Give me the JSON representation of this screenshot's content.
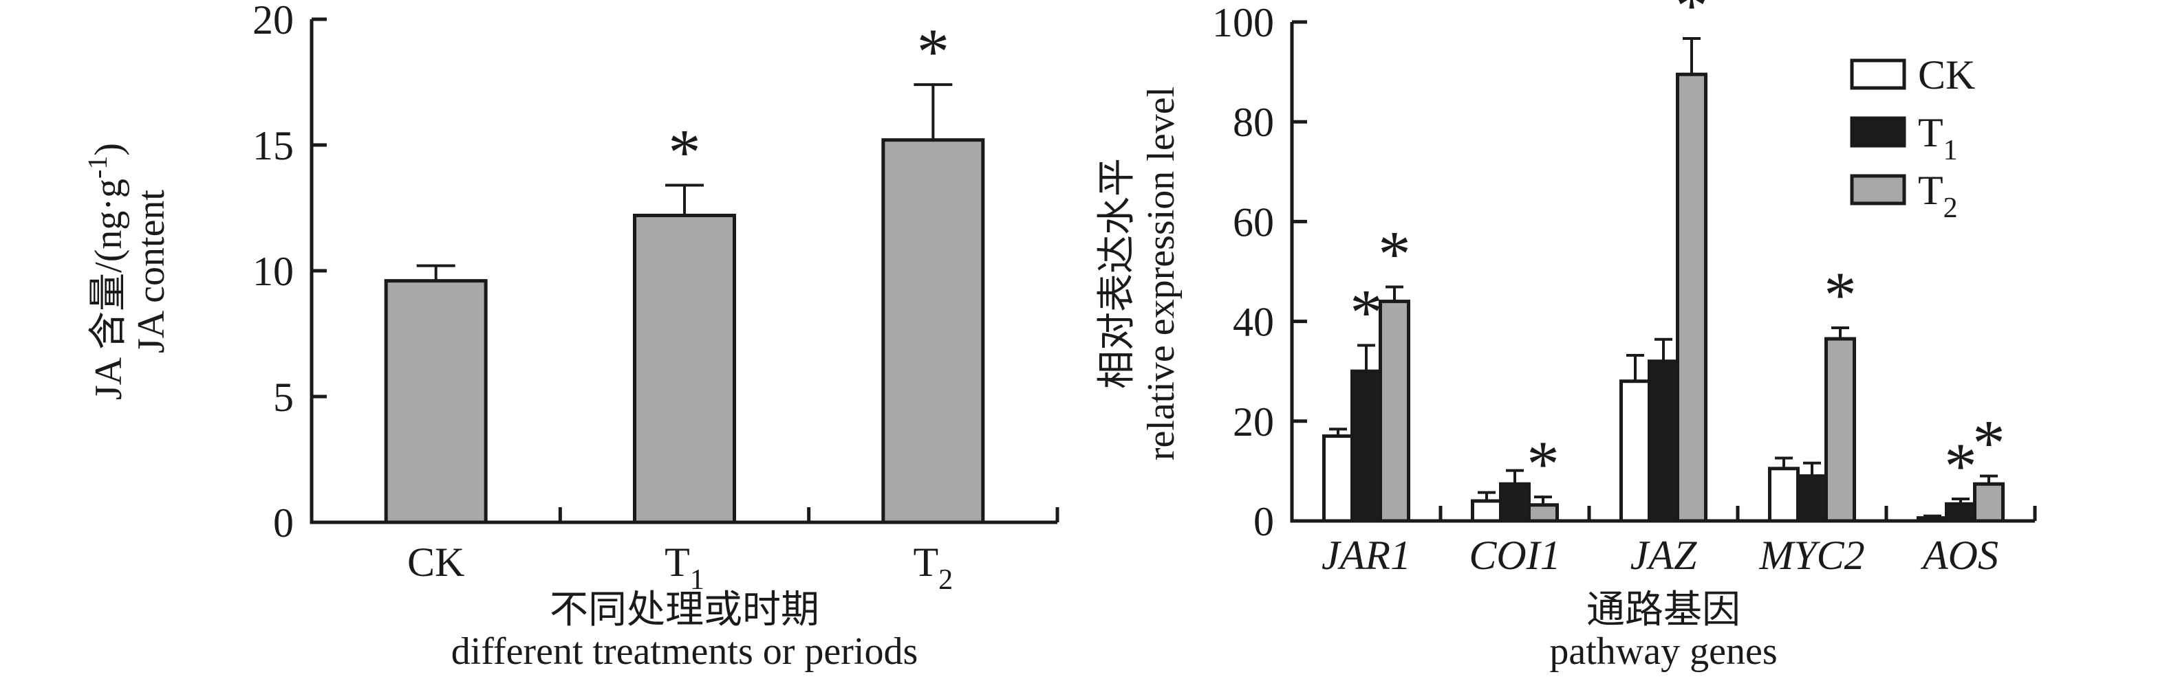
{
  "figure": {
    "background": "#ffffff",
    "significance_marker": "*",
    "colors": {
      "ink": "#1a1a1a",
      "bar_gray": "#a8a8a8",
      "bar_black": "#1c1c1c",
      "bar_white": "#ffffff"
    }
  },
  "chart_data": [
    {
      "id": "ja_content",
      "type": "bar",
      "categories": [
        {
          "text": "CK"
        },
        {
          "text": "T",
          "sub": "1"
        },
        {
          "text": "T",
          "sub": "2"
        }
      ],
      "values": [
        9.6,
        12.2,
        15.2
      ],
      "errors": [
        0.6,
        1.2,
        2.2
      ],
      "significant": [
        false,
        true,
        true
      ],
      "bar_color": "#a8a8a8",
      "ylim": [
        0,
        20
      ],
      "yticks": [
        0,
        5,
        10,
        15,
        20
      ],
      "ylabel": {
        "zh": {
          "pre": "JA 含量/(ng·g",
          "sup": "-1",
          "post": ")"
        },
        "en": "JA content"
      },
      "xlabel": {
        "zh": "不同处理或时期",
        "en": "different treatments or periods"
      },
      "grid": false,
      "legend": null
    },
    {
      "id": "pathway_genes",
      "type": "grouped_bar",
      "categories": [
        {
          "text": "JAR1"
        },
        {
          "text": "COI1"
        },
        {
          "text": "JAZ"
        },
        {
          "text": "MYC2"
        },
        {
          "text": "AOS"
        }
      ],
      "categories_italic": true,
      "series": [
        {
          "name": {
            "text": "CK"
          },
          "color": "#ffffff",
          "values": [
            17,
            4,
            28,
            10.5,
            0.6
          ],
          "errors": [
            1.4,
            1.7,
            5.2,
            2.1,
            0.4
          ],
          "significant": [
            false,
            false,
            false,
            false,
            false
          ]
        },
        {
          "name": {
            "text": "T",
            "sub": "1"
          },
          "color": "#1c1c1c",
          "values": [
            30,
            7.4,
            32,
            9,
            3.4
          ],
          "errors": [
            5.2,
            2.7,
            4.4,
            2.6,
            1.0
          ],
          "significant": [
            true,
            false,
            false,
            false,
            true
          ]
        },
        {
          "name": {
            "text": "T",
            "sub": "2"
          },
          "color": "#a8a8a8",
          "values": [
            44,
            3.2,
            89.5,
            36.5,
            7.4
          ],
          "errors": [
            2.9,
            1.6,
            7.2,
            2.2,
            1.6
          ],
          "significant": [
            true,
            true,
            true,
            true,
            true
          ]
        }
      ],
      "ylim": [
        0,
        100
      ],
      "yticks": [
        0,
        20,
        40,
        60,
        80,
        100
      ],
      "ylabel": {
        "zh": "相对表达水平",
        "en": "relative expression level"
      },
      "xlabel": {
        "zh": "通路基因",
        "en": "pathway genes"
      },
      "grid": false,
      "legend": {
        "position": "top-right"
      }
    }
  ]
}
